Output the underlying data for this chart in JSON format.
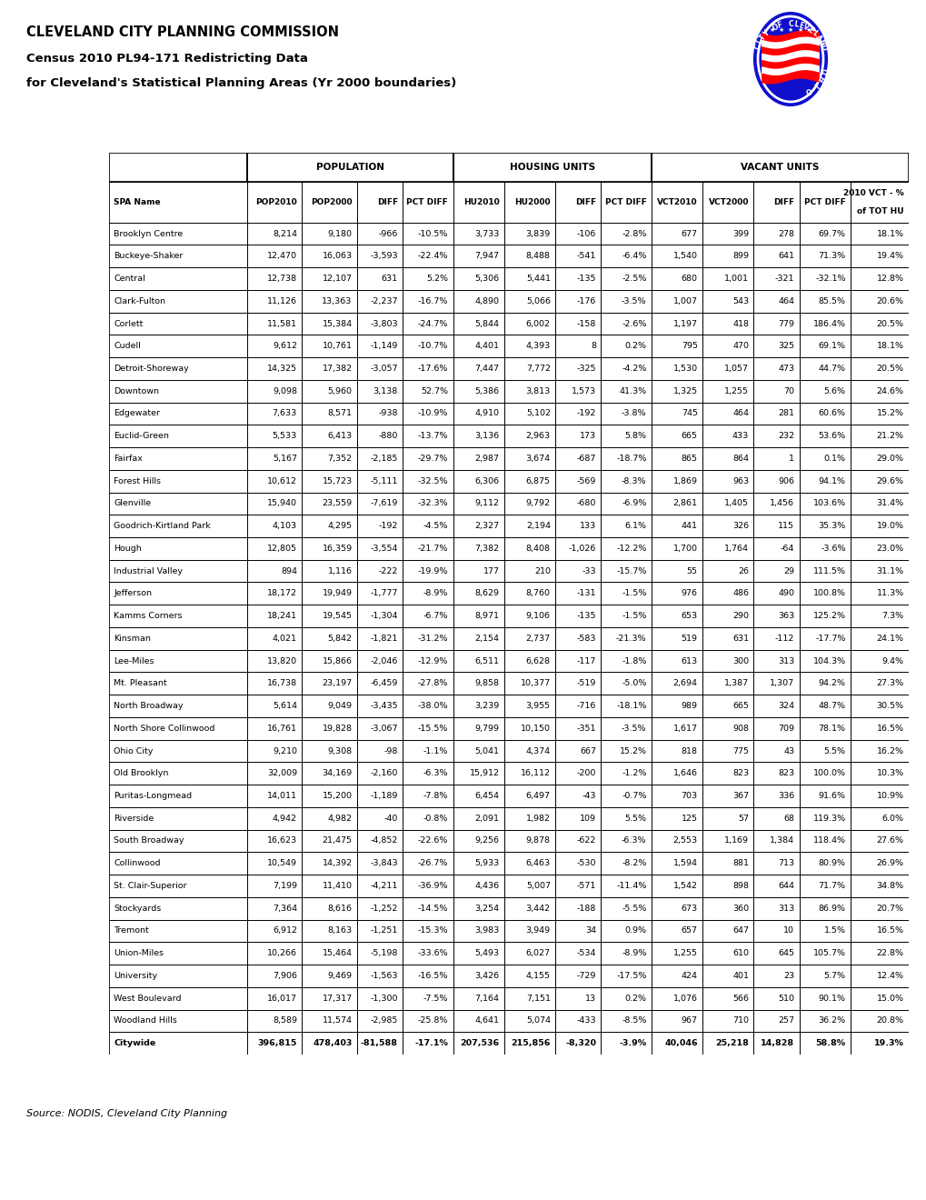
{
  "title_line1": "CLEVELAND CITY PLANNING COMMISSION",
  "title_line2": "Census 2010 PL94-171 Redistricting Data",
  "title_line3": "for Cleveland's Statistical Planning Areas (Yr 2000 boundaries)",
  "source_text": "Source: NODIS, Cleveland City Planning",
  "col_headers_row2": [
    "SPA Name",
    "POP2010",
    "POP2000",
    "DIFF",
    "PCT DIFF",
    "HU2010",
    "HU2000",
    "DIFF",
    "PCT DIFF",
    "VCT2010",
    "VCT2000",
    "DIFF",
    "PCT DIFF",
    "2010 VCT - %\nof TOT HU"
  ],
  "rows": [
    [
      "Brooklyn Centre",
      "8,214",
      "9,180",
      "-966",
      "-10.5%",
      "3,733",
      "3,839",
      "-106",
      "-2.8%",
      "677",
      "399",
      "278",
      "69.7%",
      "18.1%"
    ],
    [
      "Buckeye-Shaker",
      "12,470",
      "16,063",
      "-3,593",
      "-22.4%",
      "7,947",
      "8,488",
      "-541",
      "-6.4%",
      "1,540",
      "899",
      "641",
      "71.3%",
      "19.4%"
    ],
    [
      "Central",
      "12,738",
      "12,107",
      "631",
      "5.2%",
      "5,306",
      "5,441",
      "-135",
      "-2.5%",
      "680",
      "1,001",
      "-321",
      "-32.1%",
      "12.8%"
    ],
    [
      "Clark-Fulton",
      "11,126",
      "13,363",
      "-2,237",
      "-16.7%",
      "4,890",
      "5,066",
      "-176",
      "-3.5%",
      "1,007",
      "543",
      "464",
      "85.5%",
      "20.6%"
    ],
    [
      "Corlett",
      "11,581",
      "15,384",
      "-3,803",
      "-24.7%",
      "5,844",
      "6,002",
      "-158",
      "-2.6%",
      "1,197",
      "418",
      "779",
      "186.4%",
      "20.5%"
    ],
    [
      "Cudell",
      "9,612",
      "10,761",
      "-1,149",
      "-10.7%",
      "4,401",
      "4,393",
      "8",
      "0.2%",
      "795",
      "470",
      "325",
      "69.1%",
      "18.1%"
    ],
    [
      "Detroit-Shoreway",
      "14,325",
      "17,382",
      "-3,057",
      "-17.6%",
      "7,447",
      "7,772",
      "-325",
      "-4.2%",
      "1,530",
      "1,057",
      "473",
      "44.7%",
      "20.5%"
    ],
    [
      "Downtown",
      "9,098",
      "5,960",
      "3,138",
      "52.7%",
      "5,386",
      "3,813",
      "1,573",
      "41.3%",
      "1,325",
      "1,255",
      "70",
      "5.6%",
      "24.6%"
    ],
    [
      "Edgewater",
      "7,633",
      "8,571",
      "-938",
      "-10.9%",
      "4,910",
      "5,102",
      "-192",
      "-3.8%",
      "745",
      "464",
      "281",
      "60.6%",
      "15.2%"
    ],
    [
      "Euclid-Green",
      "5,533",
      "6,413",
      "-880",
      "-13.7%",
      "3,136",
      "2,963",
      "173",
      "5.8%",
      "665",
      "433",
      "232",
      "53.6%",
      "21.2%"
    ],
    [
      "Fairfax",
      "5,167",
      "7,352",
      "-2,185",
      "-29.7%",
      "2,987",
      "3,674",
      "-687",
      "-18.7%",
      "865",
      "864",
      "1",
      "0.1%",
      "29.0%"
    ],
    [
      "Forest Hills",
      "10,612",
      "15,723",
      "-5,111",
      "-32.5%",
      "6,306",
      "6,875",
      "-569",
      "-8.3%",
      "1,869",
      "963",
      "906",
      "94.1%",
      "29.6%"
    ],
    [
      "Glenville",
      "15,940",
      "23,559",
      "-7,619",
      "-32.3%",
      "9,112",
      "9,792",
      "-680",
      "-6.9%",
      "2,861",
      "1,405",
      "1,456",
      "103.6%",
      "31.4%"
    ],
    [
      "Goodrich-Kirtland Park",
      "4,103",
      "4,295",
      "-192",
      "-4.5%",
      "2,327",
      "2,194",
      "133",
      "6.1%",
      "441",
      "326",
      "115",
      "35.3%",
      "19.0%"
    ],
    [
      "Hough",
      "12,805",
      "16,359",
      "-3,554",
      "-21.7%",
      "7,382",
      "8,408",
      "-1,026",
      "-12.2%",
      "1,700",
      "1,764",
      "-64",
      "-3.6%",
      "23.0%"
    ],
    [
      "Industrial Valley",
      "894",
      "1,116",
      "-222",
      "-19.9%",
      "177",
      "210",
      "-33",
      "-15.7%",
      "55",
      "26",
      "29",
      "111.5%",
      "31.1%"
    ],
    [
      "Jefferson",
      "18,172",
      "19,949",
      "-1,777",
      "-8.9%",
      "8,629",
      "8,760",
      "-131",
      "-1.5%",
      "976",
      "486",
      "490",
      "100.8%",
      "11.3%"
    ],
    [
      "Kamms Corners",
      "18,241",
      "19,545",
      "-1,304",
      "-6.7%",
      "8,971",
      "9,106",
      "-135",
      "-1.5%",
      "653",
      "290",
      "363",
      "125.2%",
      "7.3%"
    ],
    [
      "Kinsman",
      "4,021",
      "5,842",
      "-1,821",
      "-31.2%",
      "2,154",
      "2,737",
      "-583",
      "-21.3%",
      "519",
      "631",
      "-112",
      "-17.7%",
      "24.1%"
    ],
    [
      "Lee-Miles",
      "13,820",
      "15,866",
      "-2,046",
      "-12.9%",
      "6,511",
      "6,628",
      "-117",
      "-1.8%",
      "613",
      "300",
      "313",
      "104.3%",
      "9.4%"
    ],
    [
      "Mt. Pleasant",
      "16,738",
      "23,197",
      "-6,459",
      "-27.8%",
      "9,858",
      "10,377",
      "-519",
      "-5.0%",
      "2,694",
      "1,387",
      "1,307",
      "94.2%",
      "27.3%"
    ],
    [
      "North Broadway",
      "5,614",
      "9,049",
      "-3,435",
      "-38.0%",
      "3,239",
      "3,955",
      "-716",
      "-18.1%",
      "989",
      "665",
      "324",
      "48.7%",
      "30.5%"
    ],
    [
      "North Shore Collinwood",
      "16,761",
      "19,828",
      "-3,067",
      "-15.5%",
      "9,799",
      "10,150",
      "-351",
      "-3.5%",
      "1,617",
      "908",
      "709",
      "78.1%",
      "16.5%"
    ],
    [
      "Ohio City",
      "9,210",
      "9,308",
      "-98",
      "-1.1%",
      "5,041",
      "4,374",
      "667",
      "15.2%",
      "818",
      "775",
      "43",
      "5.5%",
      "16.2%"
    ],
    [
      "Old Brooklyn",
      "32,009",
      "34,169",
      "-2,160",
      "-6.3%",
      "15,912",
      "16,112",
      "-200",
      "-1.2%",
      "1,646",
      "823",
      "823",
      "100.0%",
      "10.3%"
    ],
    [
      "Puritas-Longmead",
      "14,011",
      "15,200",
      "-1,189",
      "-7.8%",
      "6,454",
      "6,497",
      "-43",
      "-0.7%",
      "703",
      "367",
      "336",
      "91.6%",
      "10.9%"
    ],
    [
      "Riverside",
      "4,942",
      "4,982",
      "-40",
      "-0.8%",
      "2,091",
      "1,982",
      "109",
      "5.5%",
      "125",
      "57",
      "68",
      "119.3%",
      "6.0%"
    ],
    [
      "South Broadway",
      "16,623",
      "21,475",
      "-4,852",
      "-22.6%",
      "9,256",
      "9,878",
      "-622",
      "-6.3%",
      "2,553",
      "1,169",
      "1,384",
      "118.4%",
      "27.6%"
    ],
    [
      "Collinwood",
      "10,549",
      "14,392",
      "-3,843",
      "-26.7%",
      "5,933",
      "6,463",
      "-530",
      "-8.2%",
      "1,594",
      "881",
      "713",
      "80.9%",
      "26.9%"
    ],
    [
      "St. Clair-Superior",
      "7,199",
      "11,410",
      "-4,211",
      "-36.9%",
      "4,436",
      "5,007",
      "-571",
      "-11.4%",
      "1,542",
      "898",
      "644",
      "71.7%",
      "34.8%"
    ],
    [
      "Stockyards",
      "7,364",
      "8,616",
      "-1,252",
      "-14.5%",
      "3,254",
      "3,442",
      "-188",
      "-5.5%",
      "673",
      "360",
      "313",
      "86.9%",
      "20.7%"
    ],
    [
      "Tremont",
      "6,912",
      "8,163",
      "-1,251",
      "-15.3%",
      "3,983",
      "3,949",
      "34",
      "0.9%",
      "657",
      "647",
      "10",
      "1.5%",
      "16.5%"
    ],
    [
      "Union-Miles",
      "10,266",
      "15,464",
      "-5,198",
      "-33.6%",
      "5,493",
      "6,027",
      "-534",
      "-8.9%",
      "1,255",
      "610",
      "645",
      "105.7%",
      "22.8%"
    ],
    [
      "University",
      "7,906",
      "9,469",
      "-1,563",
      "-16.5%",
      "3,426",
      "4,155",
      "-729",
      "-17.5%",
      "424",
      "401",
      "23",
      "5.7%",
      "12.4%"
    ],
    [
      "West Boulevard",
      "16,017",
      "17,317",
      "-1,300",
      "-7.5%",
      "7,164",
      "7,151",
      "13",
      "0.2%",
      "1,076",
      "566",
      "510",
      "90.1%",
      "15.0%"
    ],
    [
      "Woodland Hills",
      "8,589",
      "11,574",
      "-2,985",
      "-25.8%",
      "4,641",
      "5,074",
      "-433",
      "-8.5%",
      "967",
      "710",
      "257",
      "36.2%",
      "20.8%"
    ],
    [
      "Citywide",
      "396,815",
      "478,403",
      "-81,588",
      "-17.1%",
      "207,536",
      "215,856",
      "-8,320",
      "-3.9%",
      "40,046",
      "25,218",
      "14,828",
      "58.8%",
      "19.3%"
    ]
  ]
}
